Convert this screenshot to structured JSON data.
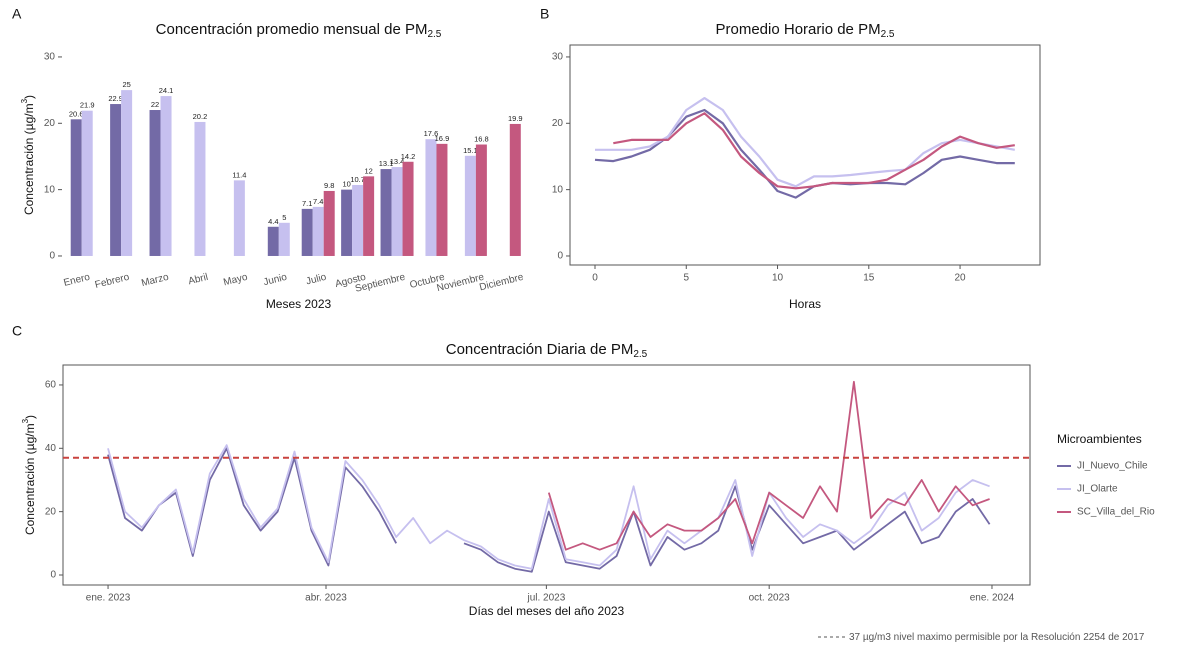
{
  "chart_data": [
    {
      "type": "bar",
      "panel": "A",
      "title": "Concentración promedio mensual de PM",
      "title_sub": "2.5",
      "ylabel": "Concentración (µg/m",
      "ylabel_sup": "3",
      "ylabel_end": ")",
      "xlabel": "Meses 2023",
      "categories": [
        "Enero",
        "Febrero",
        "Marzo",
        "Abril",
        "Mayo",
        "Junio",
        "Julio",
        "Agosto",
        "Septiembre",
        "Octubre",
        "Noviembre",
        "Diciembre"
      ],
      "series": [
        {
          "color": "#736aa6",
          "values": [
            20.6,
            22.9,
            22,
            null,
            null,
            4.4,
            7.1,
            10,
            13.1,
            null,
            null,
            null
          ]
        },
        {
          "color": "#c6c0ef",
          "values": [
            21.9,
            25,
            24.1,
            20.2,
            11.4,
            5,
            7.4,
            10.7,
            13.4,
            17.6,
            15.1,
            null
          ]
        },
        {
          "color": "#c4587f",
          "values": [
            null,
            null,
            null,
            null,
            null,
            null,
            9.8,
            12,
            14.2,
            16.9,
            16.8,
            19.9
          ]
        }
      ],
      "ylim": [
        -1.36,
        31.8
      ],
      "yticks": [
        0,
        10,
        20,
        30
      ]
    },
    {
      "type": "line",
      "panel": "B",
      "title": "Promedio Horario de PM",
      "title_sub": "2.5",
      "xlabel": "Horas",
      "x": [
        0,
        1,
        2,
        3,
        4,
        5,
        6,
        7,
        8,
        9,
        10,
        11,
        12,
        13,
        14,
        15,
        16,
        17,
        18,
        19,
        20,
        21,
        22,
        23
      ],
      "series": [
        {
          "color": "#736aa6",
          "values": [
            14.5,
            14.3,
            15,
            16,
            18,
            21,
            22,
            20,
            16,
            13,
            9.8,
            8.8,
            10.5,
            11,
            10.8,
            11,
            11,
            10.8,
            12.5,
            14.5,
            15,
            14.5,
            14,
            14
          ]
        },
        {
          "color": "#c6c0ef",
          "values": [
            16,
            16,
            16,
            16.5,
            18,
            22,
            23.8,
            22,
            18,
            15,
            11.5,
            10.5,
            12,
            12,
            12.2,
            12.5,
            12.8,
            13,
            15.5,
            17,
            17.5,
            17,
            16.5,
            16
          ]
        },
        {
          "color": "#c4587f",
          "values": [
            null,
            17,
            17.5,
            17.5,
            17.5,
            20,
            21.5,
            19,
            15,
            12.5,
            10.5,
            10.2,
            10.5,
            11,
            11,
            11,
            11.5,
            13,
            14.5,
            16.5,
            18,
            17,
            16.3,
            16.7
          ]
        }
      ],
      "xlim": [
        -1.37,
        24.38
      ],
      "xticks": [
        0,
        5,
        10,
        15,
        20
      ],
      "ylim": [
        -1.36,
        31.8
      ],
      "yticks": [
        0,
        10,
        20,
        30
      ]
    },
    {
      "type": "line",
      "panel": "C",
      "title": "Concentración Diaria de PM",
      "title_sub": "2.5",
      "ylabel": "Concentración  (µg/m",
      "ylabel_sup": "3",
      "ylabel_end": ")",
      "xlabel": "Días del meses del año 2023",
      "legend_title": "Microambientes",
      "x": [
        0,
        7,
        14,
        21,
        28,
        35,
        42,
        49,
        56,
        63,
        70,
        77,
        84,
        91,
        98,
        105,
        112,
        119,
        126,
        133,
        140,
        147,
        154,
        161,
        168,
        175,
        182,
        189,
        196,
        203,
        210,
        217,
        224,
        231,
        238,
        245,
        252,
        259,
        266,
        273,
        280,
        287,
        294,
        301,
        308,
        315,
        322,
        329,
        336,
        343,
        350,
        357,
        364
      ],
      "series": [
        {
          "name": "JI_Nuevo_Chile",
          "color": "#736aa6",
          "values": [
            38,
            18,
            14,
            22,
            26,
            6,
            30,
            40,
            22,
            14,
            20,
            37,
            14,
            3,
            34,
            28,
            20,
            10,
            null,
            null,
            null,
            10,
            8,
            4,
            2,
            1,
            20,
            4,
            3,
            2,
            6,
            20,
            3,
            12,
            8,
            10,
            14,
            28,
            8,
            22,
            16,
            10,
            12,
            14,
            8,
            12,
            16,
            20,
            10,
            12,
            20,
            24,
            16
          ]
        },
        {
          "name": "JI_Olarte",
          "color": "#c6c0ef",
          "values": [
            40,
            20,
            15,
            22,
            27,
            7,
            32,
            41,
            24,
            15,
            21,
            39,
            15,
            4,
            36,
            30,
            22,
            12,
            18,
            10,
            14,
            11,
            9,
            5,
            3,
            2,
            24,
            5,
            4,
            3,
            8,
            28,
            5,
            14,
            10,
            14,
            18,
            30,
            6,
            26,
            18,
            12,
            16,
            14,
            10,
            14,
            22,
            26,
            14,
            18,
            26,
            30,
            28
          ]
        },
        {
          "name": "SC_Villa_del_Rio",
          "color": "#c4587f",
          "values": [
            null,
            null,
            null,
            null,
            null,
            null,
            null,
            null,
            null,
            null,
            null,
            null,
            null,
            null,
            null,
            null,
            null,
            null,
            null,
            null,
            null,
            null,
            null,
            null,
            null,
            null,
            26,
            8,
            10,
            8,
            10,
            20,
            12,
            16,
            14,
            14,
            18,
            24,
            10,
            26,
            22,
            18,
            28,
            20,
            61,
            18,
            24,
            22,
            30,
            20,
            28,
            22,
            24
          ]
        }
      ],
      "threshold": 37,
      "threshold_color": "#c9423f",
      "threshold_note": "µg/m3 nivel maximo permisible por la Resolución 2254 de 2017",
      "xlim": [
        -18.6,
        380.7
      ],
      "xticks": [
        {
          "value": 0,
          "label": "ene. 2023"
        },
        {
          "value": 90,
          "label": "abr. 2023"
        },
        {
          "value": 181,
          "label": "jul. 2023"
        },
        {
          "value": 273,
          "label": "oct. 2023"
        },
        {
          "value": 365,
          "label": "ene. 2024"
        }
      ],
      "ylim": [
        -3.16,
        66.3
      ],
      "yticks": [
        0,
        20,
        40,
        60
      ]
    }
  ]
}
